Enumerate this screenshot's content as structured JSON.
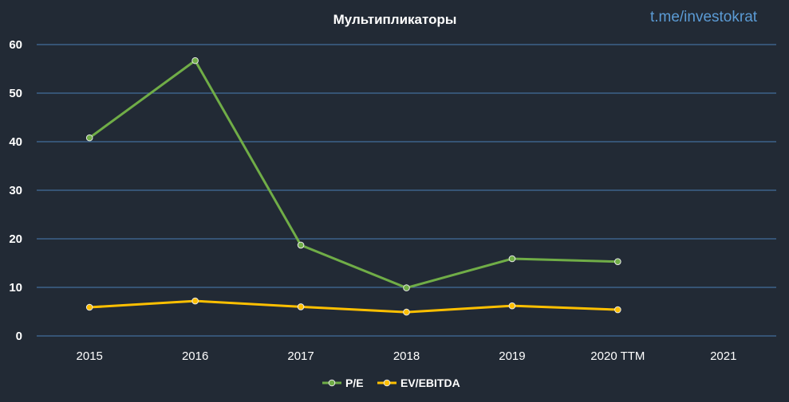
{
  "watermark": "t.me/investokrat",
  "colors": {
    "background": "#222a35",
    "grid": "#4a7db5",
    "pe": "#70ad47",
    "ev_ebitda": "#ffc000"
  },
  "chart_data": {
    "type": "line",
    "title": "Мультипликаторы",
    "xlabel": "",
    "ylabel": "",
    "categories": [
      "2015",
      "2016",
      "2017",
      "2018",
      "2019",
      "2020 TTM",
      "2021"
    ],
    "ylim": [
      0,
      60
    ],
    "yticks": [
      "0",
      "10",
      "20",
      "30",
      "40",
      "50",
      "60"
    ],
    "grid": true,
    "legend_position": "bottom",
    "series": [
      {
        "name": "P/E",
        "color": "#70ad47",
        "values": [
          40.8,
          56.7,
          18.7,
          9.9,
          15.9,
          15.3,
          null
        ]
      },
      {
        "name": "EV/EBITDA",
        "color": "#ffc000",
        "values": [
          5.9,
          7.2,
          6.0,
          4.9,
          6.2,
          5.4,
          null
        ]
      }
    ]
  }
}
